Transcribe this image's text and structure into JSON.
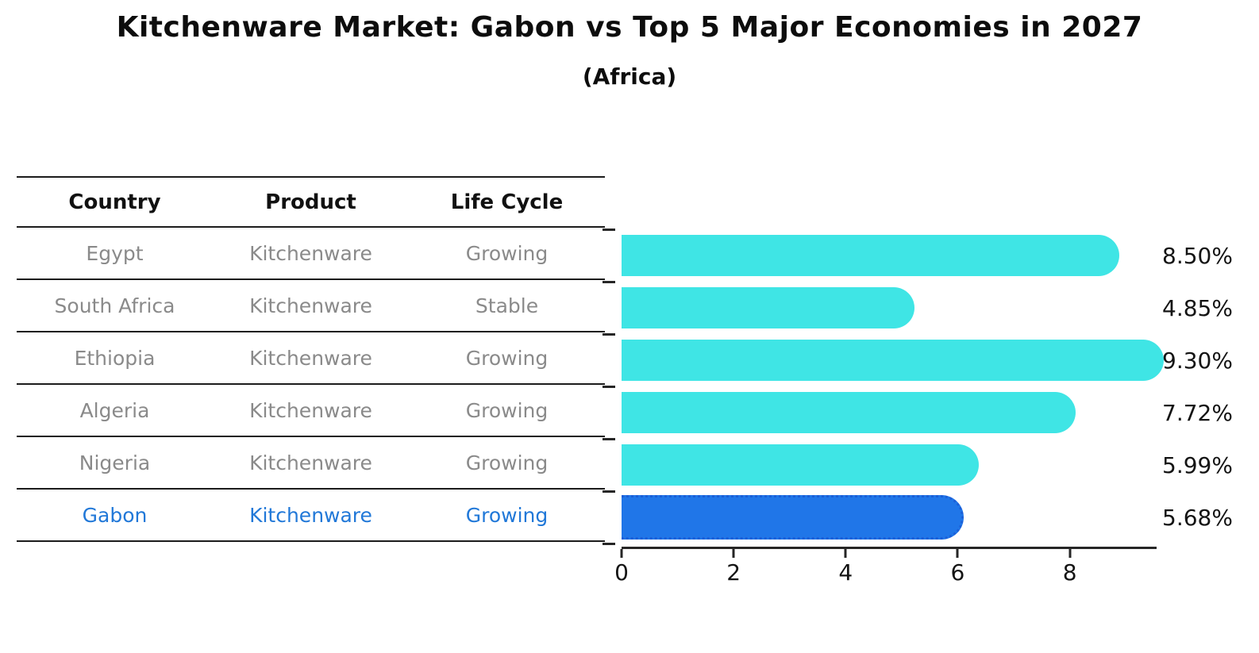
{
  "title": "Kitchenware Market: Gabon vs Top 5 Major Economies in 2027",
  "subtitle": "(Africa)",
  "table": {
    "headers": [
      "Country",
      "Product",
      "Life Cycle"
    ],
    "rows": [
      {
        "country": "Egypt",
        "product": "Kitchenware",
        "life_cycle": "Growing",
        "highlighted": false
      },
      {
        "country": "South Africa",
        "product": "Kitchenware",
        "life_cycle": "Stable",
        "highlighted": false
      },
      {
        "country": "Ethiopia",
        "product": "Kitchenware",
        "life_cycle": "Growing",
        "highlighted": false
      },
      {
        "country": "Algeria",
        "product": "Kitchenware",
        "life_cycle": "Growing",
        "highlighted": false
      },
      {
        "country": "Nigeria",
        "product": "Kitchenware",
        "life_cycle": "Growing",
        "highlighted": false
      },
      {
        "country": "Gabon",
        "product": "Kitchenware",
        "life_cycle": "Growing",
        "highlighted": true
      }
    ]
  },
  "chart_data": {
    "type": "bar",
    "orientation": "horizontal",
    "title": "Kitchenware Market: Gabon vs Top 5 Major Economies in 2027 (Africa)",
    "categories": [
      "Egypt",
      "South Africa",
      "Ethiopia",
      "Algeria",
      "Nigeria",
      "Gabon"
    ],
    "values": [
      8.5,
      4.85,
      9.3,
      7.72,
      5.99,
      5.68
    ],
    "labels": [
      "8.50%",
      "4.85%",
      "9.30%",
      "7.72%",
      "5.99%",
      "5.68%"
    ],
    "x_ticks": [
      "0",
      "2",
      "4",
      "6",
      "8"
    ],
    "x_tick_values": [
      0,
      2,
      4,
      6,
      8
    ],
    "xlim": [
      0,
      9.55
    ],
    "grid": false,
    "legend": false,
    "highlight_index": 5,
    "bar_color": "#3fe5e5",
    "highlight_color": "#2076e8",
    "highlight_border_color": "#1b5fd8",
    "axis_color": "#262626"
  },
  "colors": {
    "accent_text": "#2178d8",
    "muted_text": "#8a8a8a",
    "heading_text": "#111111"
  }
}
